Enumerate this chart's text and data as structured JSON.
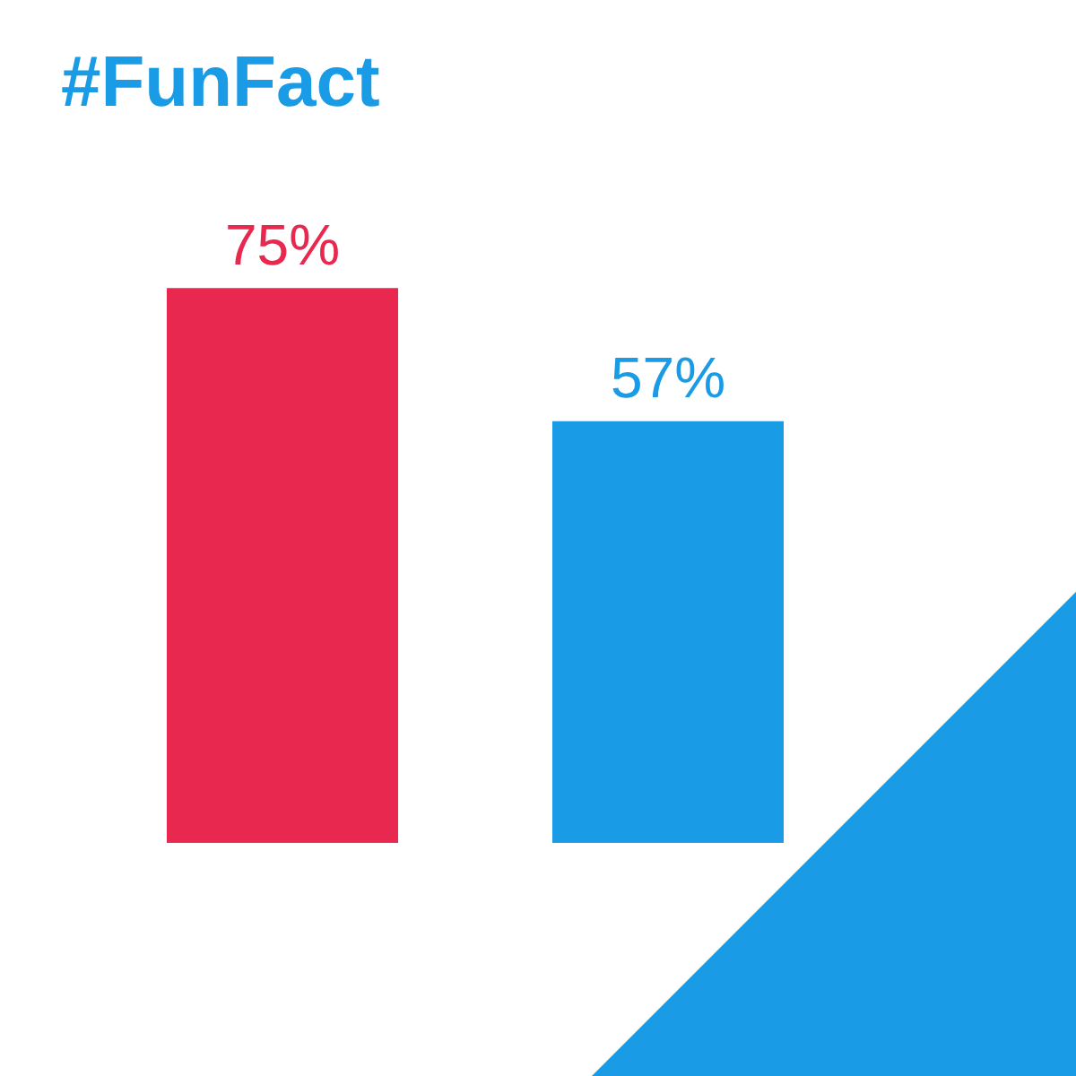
{
  "chart_data": {
    "type": "bar",
    "title": "#FunFact",
    "categories": [
      null,
      null
    ],
    "values": [
      75,
      57
    ],
    "colors": [
      "#e8284f",
      "#1a9be6"
    ],
    "value_labels": [
      "75%",
      "57%"
    ],
    "tick_labels": false
  }
}
